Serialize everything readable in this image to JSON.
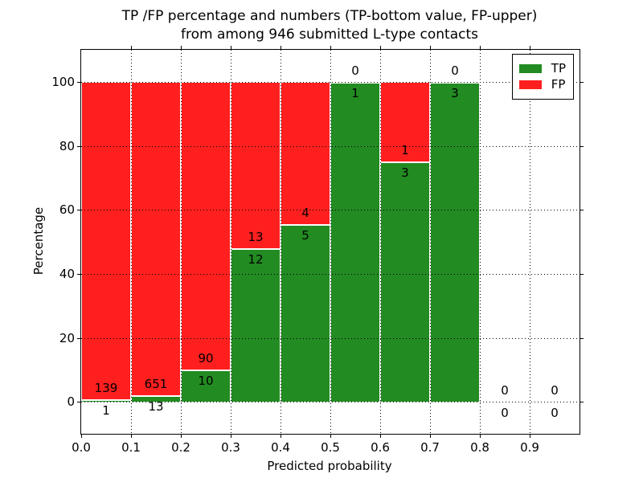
{
  "figure": {
    "title_line1": "TP /FP percentage and numbers (TP-bottom value, FP-upper)",
    "title_line2": "from among 946 submitted L-type contacts"
  },
  "axes": {
    "xlabel": "Predicted probability",
    "ylabel": "Percentage",
    "x_tick_labels": [
      "0.0",
      "0.1",
      "0.2",
      "0.3",
      "0.4",
      "0.5",
      "0.6",
      "0.7",
      "0.8",
      "0.9"
    ],
    "x_tick_values": [
      0.0,
      0.1,
      0.2,
      0.3,
      0.4,
      0.5,
      0.6,
      0.7,
      0.8,
      0.9
    ],
    "y_tick_labels": [
      "0",
      "20",
      "40",
      "60",
      "80",
      "100"
    ],
    "y_tick_values": [
      0,
      20,
      40,
      60,
      80,
      100
    ],
    "xlim": [
      0.0,
      1.0
    ],
    "ylim": [
      -10,
      110
    ],
    "grid": true,
    "grid_style": "dotted"
  },
  "legend": {
    "position": "upper right",
    "items": [
      {
        "label": "TP",
        "color": "#228B22"
      },
      {
        "label": "FP",
        "color": "#FF1F1F"
      }
    ]
  },
  "colors": {
    "tp": "#228B22",
    "fp": "#FF1F1F",
    "bar_edge": "#FFFFFF",
    "grid": "#000000",
    "text": "#000000",
    "background": "#FFFFFF"
  },
  "chart_data": {
    "type": "bar",
    "stacked": true,
    "normalized": "percent",
    "title": "TP /FP percentage and numbers (TP-bottom value, FP-upper) from among 946 submitted L-type contacts",
    "xlabel": "Predicted probability",
    "ylabel": "Percentage",
    "xlim": [
      0.0,
      1.0
    ],
    "ylim": [
      -10,
      110
    ],
    "legend_position": "upper right",
    "bin_edges": [
      0.0,
      0.1,
      0.2,
      0.3,
      0.4,
      0.5,
      0.6,
      0.7,
      0.8,
      0.9,
      1.0
    ],
    "series": [
      {
        "name": "TP",
        "color": "#228B22",
        "counts": [
          1,
          13,
          10,
          12,
          5,
          1,
          3,
          3,
          0,
          0
        ]
      },
      {
        "name": "FP",
        "color": "#FF1F1F",
        "counts": [
          139,
          651,
          90,
          13,
          4,
          0,
          1,
          0,
          0,
          0
        ]
      }
    ],
    "tp_percent_by_bin": [
      0.71,
      1.96,
      10.0,
      48.0,
      55.56,
      100.0,
      75.0,
      100.0,
      null,
      null
    ],
    "total_contacts": 946
  }
}
